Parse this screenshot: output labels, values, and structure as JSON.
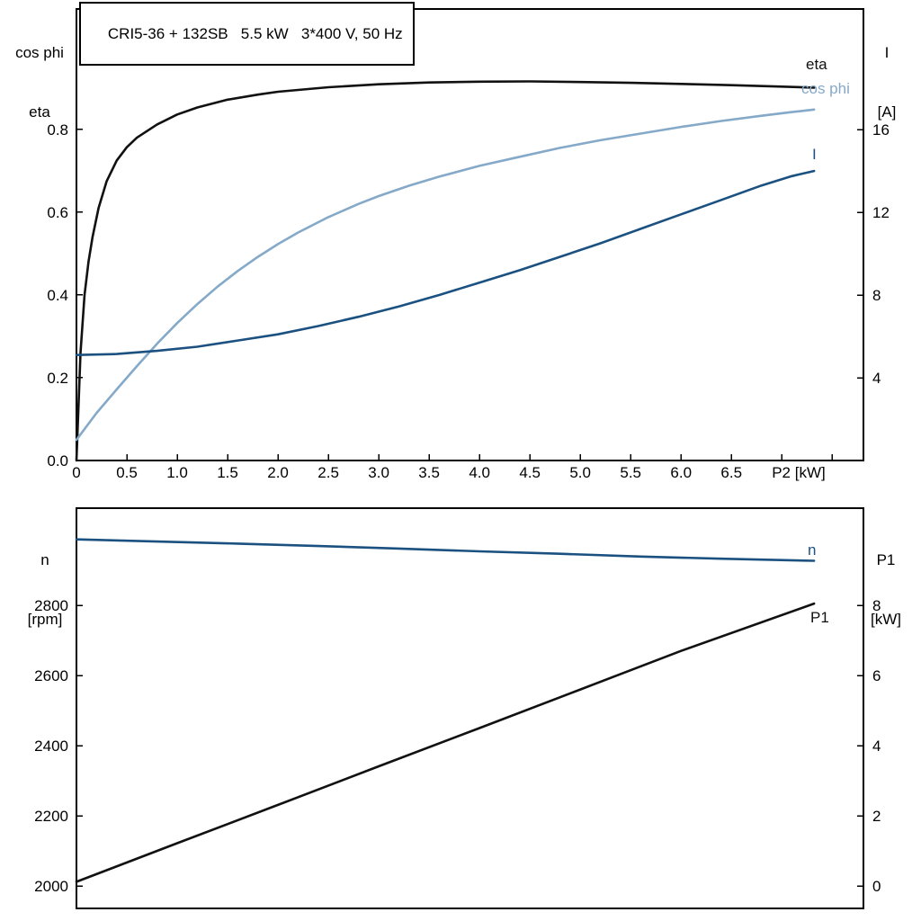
{
  "chart_title": "CRI5-36 + 132SB   5.5 kW   3*400 V, 50 Hz",
  "colors": {
    "black": "#111111",
    "dark_blue": "#1b5180",
    "light_blue": "#85a9c8",
    "axis": "#000000"
  },
  "chart_data": [
    {
      "type": "line",
      "title": "CRI5-36 + 132SB   5.5 kW   3*400 V, 50 Hz",
      "x_axis": {
        "label": "P2 [kW]",
        "min": 0,
        "max": 7.81,
        "tick_values": [
          0,
          0.5,
          1.0,
          1.5,
          2.0,
          2.5,
          3.0,
          3.5,
          4.0,
          4.5,
          5.0,
          5.5,
          6.0,
          6.5,
          7.0,
          7.5
        ],
        "tick_labels": [
          "0",
          "0.5",
          "1.0",
          "1.5",
          "2.0",
          "2.5",
          "3.0",
          "3.5",
          "4.0",
          "4.5",
          "5.0",
          "5.5",
          "6.0",
          "6.5",
          "",
          ""
        ]
      },
      "y_left": {
        "title_lines": [
          "cos phi",
          "eta"
        ],
        "min": 0,
        "max": 1.091,
        "tick_values": [
          0.0,
          0.2,
          0.4,
          0.6,
          0.8
        ],
        "tick_labels": [
          "0.0",
          "0.2",
          "0.4",
          "0.6",
          "0.8"
        ]
      },
      "y_right": {
        "title_lines": [
          "I",
          "[A]"
        ],
        "min": 0,
        "max": 21.83,
        "tick_values": [
          4,
          8,
          12,
          16
        ],
        "tick_labels": [
          "4",
          "8",
          "12",
          "16"
        ]
      },
      "series": [
        {
          "name": "eta",
          "axis": "left",
          "color": "#111111",
          "label": {
            "text": "eta",
            "px": [
              896,
              77
            ]
          },
          "points": [
            [
              0,
              0.0
            ],
            [
              0.04,
              0.26
            ],
            [
              0.08,
              0.4
            ],
            [
              0.12,
              0.48
            ],
            [
              0.16,
              0.54
            ],
            [
              0.22,
              0.61
            ],
            [
              0.3,
              0.675
            ],
            [
              0.4,
              0.725
            ],
            [
              0.5,
              0.757
            ],
            [
              0.6,
              0.78
            ],
            [
              0.8,
              0.812
            ],
            [
              1.0,
              0.836
            ],
            [
              1.2,
              0.853
            ],
            [
              1.5,
              0.872
            ],
            [
              1.8,
              0.884
            ],
            [
              2.0,
              0.891
            ],
            [
              2.5,
              0.902
            ],
            [
              3.0,
              0.909
            ],
            [
              3.5,
              0.9135
            ],
            [
              4.0,
              0.9155
            ],
            [
              4.5,
              0.916
            ],
            [
              5.0,
              0.9145
            ],
            [
              5.5,
              0.9125
            ],
            [
              6.0,
              0.91
            ],
            [
              6.5,
              0.907
            ],
            [
              7.0,
              0.9035
            ],
            [
              7.32,
              0.901
            ]
          ]
        },
        {
          "name": "cos phi",
          "axis": "left",
          "color": "#85a9c8",
          "label": {
            "text": "cos phi",
            "px": [
              891,
              104
            ]
          },
          "points": [
            [
              0,
              0.05
            ],
            [
              0.2,
              0.115
            ],
            [
              0.4,
              0.172
            ],
            [
              0.6,
              0.228
            ],
            [
              0.8,
              0.282
            ],
            [
              1.0,
              0.332
            ],
            [
              1.2,
              0.378
            ],
            [
              1.4,
              0.42
            ],
            [
              1.6,
              0.458
            ],
            [
              1.8,
              0.492
            ],
            [
              2.0,
              0.523
            ],
            [
              2.2,
              0.551
            ],
            [
              2.5,
              0.588
            ],
            [
              2.8,
              0.62
            ],
            [
              3.0,
              0.639
            ],
            [
              3.3,
              0.664
            ],
            [
              3.6,
              0.686
            ],
            [
              4.0,
              0.712
            ],
            [
              4.4,
              0.734
            ],
            [
              4.8,
              0.7555
            ],
            [
              5.2,
              0.774
            ],
            [
              5.6,
              0.79
            ],
            [
              6.0,
              0.806
            ],
            [
              6.4,
              0.8205
            ],
            [
              6.8,
              0.833
            ],
            [
              7.1,
              0.842
            ],
            [
              7.32,
              0.848
            ]
          ]
        },
        {
          "name": "I",
          "axis": "right",
          "color": "#1b5180",
          "label": {
            "text": "I",
            "px": [
              903,
              177
            ]
          },
          "points": [
            [
              0,
              5.1
            ],
            [
              0.4,
              5.15
            ],
            [
              0.8,
              5.3
            ],
            [
              1.2,
              5.5
            ],
            [
              1.6,
              5.8
            ],
            [
              2.0,
              6.1
            ],
            [
              2.4,
              6.5
            ],
            [
              2.8,
              6.95
            ],
            [
              3.2,
              7.45
            ],
            [
              3.6,
              8.0
            ],
            [
              4.0,
              8.6
            ],
            [
              4.4,
              9.2
            ],
            [
              4.8,
              9.85
            ],
            [
              5.2,
              10.5
            ],
            [
              5.6,
              11.2
            ],
            [
              6.0,
              11.9
            ],
            [
              6.4,
              12.6
            ],
            [
              6.8,
              13.3
            ],
            [
              7.1,
              13.75
            ],
            [
              7.32,
              14.0
            ]
          ]
        }
      ]
    },
    {
      "type": "line",
      "x_axis": {
        "label": "",
        "min": 0,
        "max": 7.81,
        "tick_values": [],
        "tick_labels": []
      },
      "y_left": {
        "title_lines": [
          "n",
          "[rpm]"
        ],
        "min": 1936,
        "max": 3077,
        "tick_values": [
          2000,
          2200,
          2400,
          2600,
          2800
        ],
        "tick_labels": [
          "2000",
          "2200",
          "2400",
          "2600",
          "2800"
        ]
      },
      "y_right": {
        "title_lines": [
          "P1",
          "[kW]"
        ],
        "min": -0.64,
        "max": 10.77,
        "tick_values": [
          0,
          2,
          4,
          6,
          8
        ],
        "tick_labels": [
          "0",
          "2",
          "4",
          "6",
          "8"
        ]
      },
      "series": [
        {
          "name": "n",
          "axis": "left",
          "color": "#1b5180",
          "label": {
            "text": "n",
            "px": [
              898,
              617
            ]
          },
          "points": [
            [
              0,
              2988
            ],
            [
              0.8,
              2982
            ],
            [
              1.6,
              2976
            ],
            [
              2.4,
              2969
            ],
            [
              3.2,
              2962
            ],
            [
              4.0,
              2954
            ],
            [
              4.8,
              2947
            ],
            [
              5.6,
              2939
            ],
            [
              6.4,
              2933
            ],
            [
              7.32,
              2927
            ]
          ]
        },
        {
          "name": "P1",
          "axis": "right",
          "color": "#111111",
          "label": {
            "text": "P1",
            "px": [
              901,
              692
            ]
          },
          "points": [
            [
              0,
              0.12
            ],
            [
              1.0,
              1.22
            ],
            [
              2.0,
              2.31
            ],
            [
              3.0,
              3.41
            ],
            [
              4.0,
              4.5
            ],
            [
              5.0,
              5.6
            ],
            [
              6.0,
              6.7
            ],
            [
              7.32,
              8.05
            ]
          ]
        }
      ]
    }
  ]
}
